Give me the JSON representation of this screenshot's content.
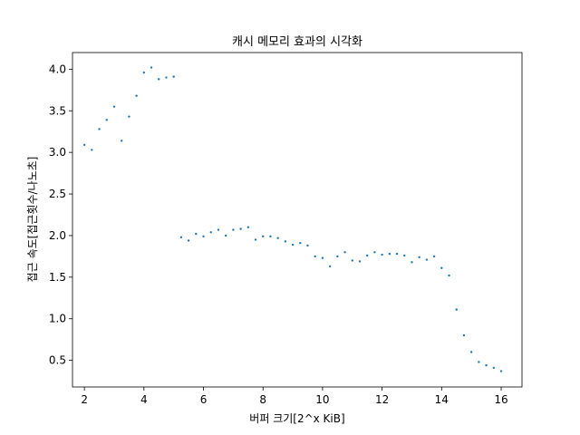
{
  "chart_data": {
    "type": "scatter",
    "title": "캐시 메모리 효과의 시각화",
    "xlabel": "버퍼 크기[2^x KiB]",
    "ylabel": "접근 속도[접근횟수/나노초]",
    "xlim": [
      1.6,
      16.7
    ],
    "ylim": [
      0.18,
      4.2
    ],
    "xticks": [
      2,
      4,
      6,
      8,
      10,
      12,
      14,
      16
    ],
    "xtick_labels": [
      "2",
      "4",
      "6",
      "8",
      "10",
      "12",
      "14",
      "16"
    ],
    "yticks": [
      0.5,
      1.0,
      1.5,
      2.0,
      2.5,
      3.0,
      3.5,
      4.0
    ],
    "ytick_labels": [
      "0.5",
      "1.0",
      "1.5",
      "2.0",
      "2.5",
      "3.0",
      "3.5",
      "4.0"
    ],
    "grid": false,
    "marker_color": "#1f77b4",
    "x": [
      2.0,
      2.25,
      2.5,
      2.75,
      3.0,
      3.25,
      3.5,
      3.75,
      4.0,
      4.25,
      4.5,
      4.75,
      5.0,
      5.25,
      5.5,
      5.75,
      6.0,
      6.25,
      6.5,
      6.75,
      7.0,
      7.25,
      7.5,
      7.75,
      8.0,
      8.25,
      8.5,
      8.75,
      9.0,
      9.25,
      9.5,
      9.75,
      10.0,
      10.25,
      10.5,
      10.75,
      11.0,
      11.25,
      11.5,
      11.75,
      12.0,
      12.25,
      12.5,
      12.75,
      13.0,
      13.25,
      13.5,
      13.75,
      14.0,
      14.25,
      14.5,
      14.75,
      15.0,
      15.25,
      15.5,
      15.75,
      16.0
    ],
    "y": [
      3.09,
      3.03,
      3.28,
      3.39,
      3.55,
      3.14,
      3.43,
      3.68,
      3.96,
      4.02,
      3.88,
      3.9,
      3.91,
      1.98,
      1.94,
      2.02,
      1.99,
      2.04,
      2.07,
      2.0,
      2.07,
      2.08,
      2.1,
      1.95,
      1.99,
      1.99,
      1.97,
      1.93,
      1.89,
      1.91,
      1.88,
      1.75,
      1.73,
      1.63,
      1.75,
      1.8,
      1.7,
      1.69,
      1.76,
      1.8,
      1.77,
      1.78,
      1.78,
      1.76,
      1.68,
      1.74,
      1.71,
      1.75,
      1.61,
      1.52,
      1.11,
      0.8,
      0.6,
      0.48,
      0.44,
      0.41,
      0.37
    ]
  }
}
